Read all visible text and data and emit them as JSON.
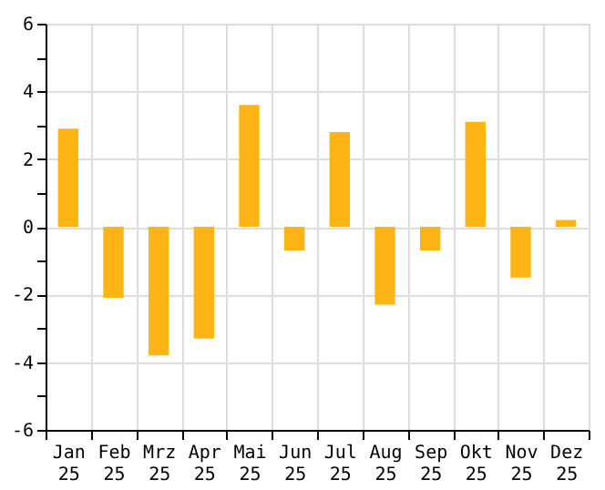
{
  "chart_data": {
    "type": "bar",
    "categories": [
      "Jan 25",
      "Feb 25",
      "Mrz 25",
      "Apr 25",
      "Mai 25",
      "Jun 25",
      "Jul 25",
      "Aug 25",
      "Sep 25",
      "Okt 25",
      "Nov 25",
      "Dez 25"
    ],
    "values": [
      2.9,
      -2.1,
      -3.8,
      -3.3,
      3.6,
      -0.7,
      2.8,
      -2.3,
      -0.7,
      3.1,
      -1.5,
      0.2
    ],
    "color": "#fdb515",
    "ylim": [
      -6,
      6
    ],
    "yticks": [
      -6,
      {
        "value": -5,
        "label": null
      },
      -4,
      {
        "value": -3,
        "label": null
      },
      -2,
      {
        "value": -1,
        "label": null
      },
      0,
      {
        "value": 1,
        "label": null
      },
      2,
      {
        "value": 3,
        "label": null
      },
      4,
      {
        "value": 5,
        "label": null
      },
      6
    ],
    "grid": true
  }
}
